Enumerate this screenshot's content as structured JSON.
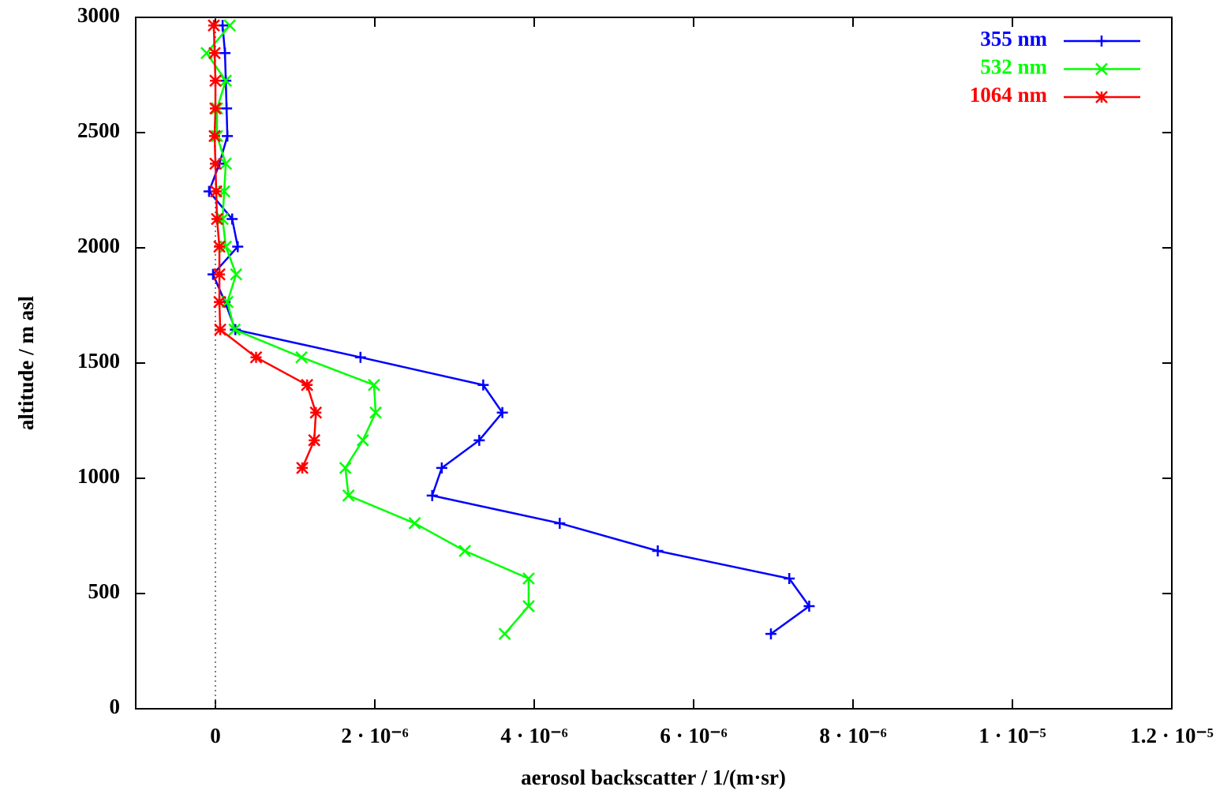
{
  "chart_data": {
    "type": "line",
    "xlabel": "aerosol backscatter / 1/(m·sr)",
    "ylabel": "altitude / m asl",
    "y": [
      325,
      445,
      565,
      685,
      805,
      925,
      1045,
      1165,
      1285,
      1405,
      1525,
      1645,
      1765,
      1885,
      2005,
      2125,
      2245,
      2365,
      2485,
      2605,
      2725,
      2845,
      2965
    ],
    "series": [
      {
        "name": "355 nm",
        "color": "#0000ff",
        "marker": "plus",
        "values": [
          6.97e-06,
          7.45e-06,
          7.2e-06,
          5.55e-06,
          4.32e-06,
          2.72e-06,
          2.84e-06,
          3.31e-06,
          3.6e-06,
          3.36e-06,
          1.82e-06,
          2.5e-07,
          1.2e-07,
          -3e-08,
          2.8e-07,
          2.1e-07,
          -8e-08,
          5e-08,
          1.5e-07,
          1.4e-07,
          1.3e-07,
          1.2e-07,
          9e-08
        ]
      },
      {
        "name": "532 nm",
        "color": "#00ff00",
        "marker": "cross",
        "values": [
          3.63e-06,
          3.93e-06,
          3.93e-06,
          3.13e-06,
          2.5e-06,
          1.67e-06,
          1.63e-06,
          1.85e-06,
          2.01e-06,
          1.99e-06,
          1.08e-06,
          2.4e-07,
          1.5e-07,
          2.6e-07,
          1.3e-07,
          9e-08,
          1.1e-07,
          1.3e-07,
          2e-08,
          2e-08,
          1.3e-07,
          -1.1e-07,
          1.8e-07
        ]
      },
      {
        "name": "1064 nm",
        "color": "#ff0000",
        "marker": "star",
        "values": [
          null,
          null,
          null,
          null,
          null,
          null,
          1.09e-06,
          1.24e-06,
          1.26e-06,
          1.15e-06,
          5.1e-07,
          6e-08,
          5e-08,
          5e-08,
          5e-08,
          2e-08,
          1e-08,
          0.0,
          -1e-08,
          0.0,
          0.0,
          -1e-08,
          -2e-08
        ]
      }
    ],
    "xlim": [
      -1e-06,
      1.2e-05
    ],
    "xticks": [
      0,
      {
        "value": 2e-06,
        "label": "2 · 10⁻⁶"
      },
      {
        "value": 4e-06,
        "label": "4 · 10⁻⁶"
      },
      {
        "value": 6e-06,
        "label": "6 · 10⁻⁶"
      },
      {
        "value": 8e-06,
        "label": "8 · 10⁻⁶"
      },
      {
        "value": 1e-05,
        "label": "1 · 10⁻⁵"
      },
      {
        "value": 1.2e-05,
        "label": "1.2 · 10⁻⁵"
      }
    ],
    "ylim": [
      0,
      3000
    ],
    "yticks": [
      0,
      500,
      1000,
      1500,
      2000,
      2500,
      3000
    ],
    "grid": false,
    "legend": "top-right"
  }
}
